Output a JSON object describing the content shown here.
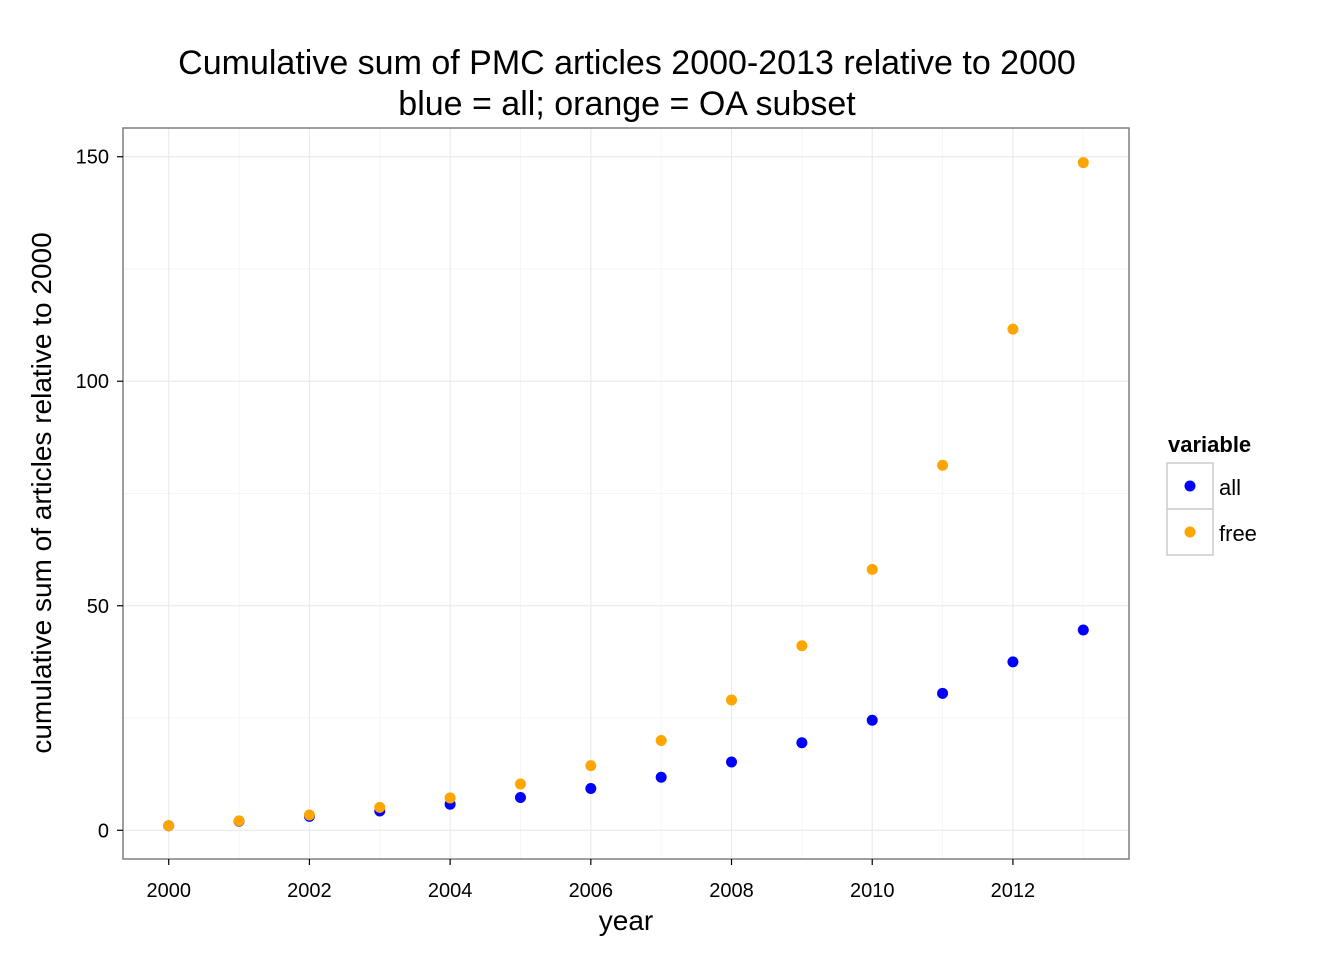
{
  "chart_data": {
    "type": "scatter",
    "title": "Cumulative sum of PMC articles 2000-2013 relative to 2000",
    "subtitle": "blue = all; orange = OA subset",
    "xlabel": "year",
    "ylabel": "cumulative sum of articles relative to 2000",
    "xlim": [
      1999.35,
      2013.65
    ],
    "ylim": [
      -6.4,
      156.4
    ],
    "x_ticks": [
      2000,
      2002,
      2004,
      2006,
      2008,
      2010,
      2012
    ],
    "y_ticks": [
      0,
      50,
      100,
      150
    ],
    "x_tick_labels": [
      "2000",
      "2002",
      "2004",
      "2006",
      "2008",
      "2010",
      "2012"
    ],
    "y_tick_labels": [
      "0",
      "50",
      "100",
      "150"
    ],
    "grid": true,
    "legend": {
      "title": "variable",
      "placement": "right"
    },
    "series": [
      {
        "name": "all",
        "color": "#0000ff",
        "x": [
          2000,
          2001,
          2002,
          2003,
          2004,
          2005,
          2006,
          2007,
          2008,
          2009,
          2010,
          2011,
          2012,
          2013
        ],
        "y": [
          1.0,
          2.0,
          3.1,
          4.3,
          5.8,
          7.3,
          9.3,
          11.8,
          15.2,
          19.5,
          24.5,
          30.5,
          37.5,
          44.6
        ]
      },
      {
        "name": "free",
        "color": "#ffa500",
        "x": [
          2000,
          2001,
          2002,
          2003,
          2004,
          2005,
          2006,
          2007,
          2008,
          2009,
          2010,
          2011,
          2012,
          2013
        ],
        "y": [
          1.0,
          2.1,
          3.4,
          5.1,
          7.2,
          10.3,
          14.4,
          20.0,
          29.0,
          41.1,
          58.1,
          81.3,
          111.6,
          148.7
        ]
      }
    ]
  }
}
